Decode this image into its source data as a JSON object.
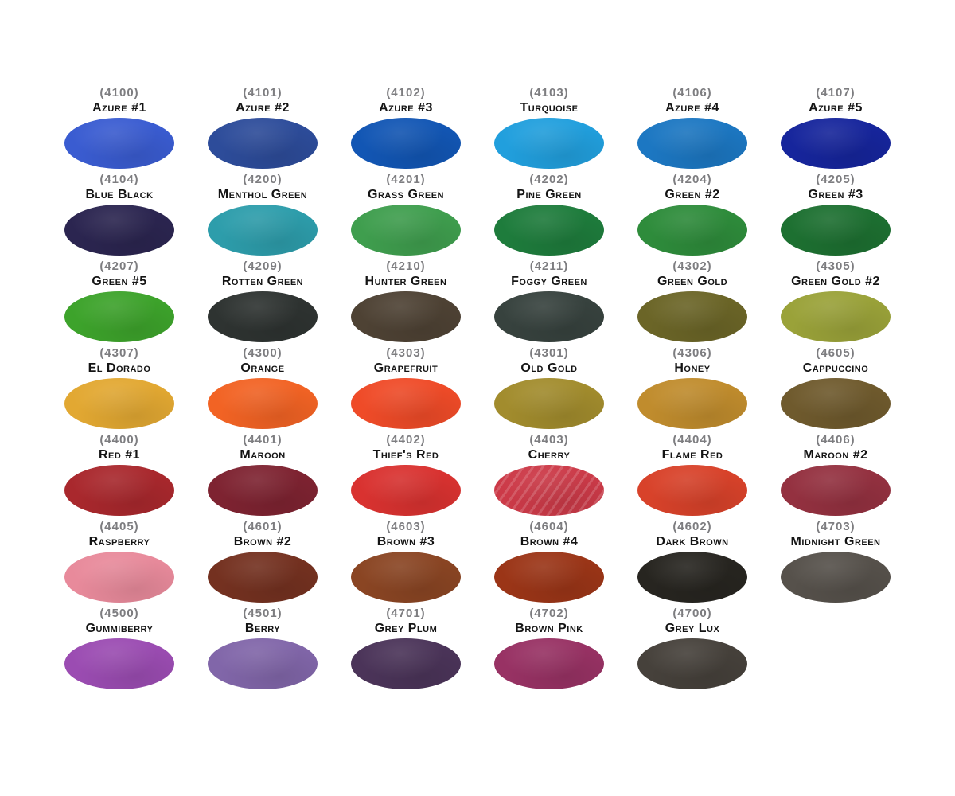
{
  "page": {
    "background": "#ffffff",
    "code_color": "#7d7d80",
    "name_color": "#141414",
    "columns": 6
  },
  "swatches": [
    {
      "code": "(4100)",
      "name": "Azure #1",
      "color": "#3a5cd1"
    },
    {
      "code": "(4101)",
      "name": "Azure #2",
      "color": "#2d4c9a"
    },
    {
      "code": "(4102)",
      "name": "Azure #3",
      "color": "#1256b4"
    },
    {
      "code": "(4103)",
      "name": "Turquoise",
      "color": "#219fdd"
    },
    {
      "code": "(4106)",
      "name": "Azure #4",
      "color": "#1c77c2"
    },
    {
      "code": "(4107)",
      "name": "Azure #5",
      "color": "#16259c"
    },
    {
      "code": "(4104)",
      "name": "Blue Black",
      "color": "#2b2550"
    },
    {
      "code": "(4200)",
      "name": "Menthol Green",
      "color": "#2d9dab"
    },
    {
      "code": "(4201)",
      "name": "Grass Green",
      "color": "#3f9e4e"
    },
    {
      "code": "(4202)",
      "name": "Pine Green",
      "color": "#1e7c3c"
    },
    {
      "code": "(4204)",
      "name": "Green #2",
      "color": "#2e8c3b"
    },
    {
      "code": "(4205)",
      "name": "Green #3",
      "color": "#1d7031"
    },
    {
      "code": "(4207)",
      "name": "Green #5",
      "color": "#3da32b"
    },
    {
      "code": "(4209)",
      "name": "Rotten Green",
      "color": "#2e3331"
    },
    {
      "code": "(4210)",
      "name": "Hunter Green",
      "color": "#4e4234"
    },
    {
      "code": "(4211)",
      "name": "Foggy Green",
      "color": "#37423e"
    },
    {
      "code": "(4302)",
      "name": "Green Gold",
      "color": "#6b6527"
    },
    {
      "code": "(4305)",
      "name": "Green Gold #2",
      "color": "#9aa239"
    },
    {
      "code": "(4307)",
      "name": "El Dorado",
      "color": "#e2a832"
    },
    {
      "code": "(4300)",
      "name": "Orange",
      "color": "#f26324"
    },
    {
      "code": "(4303)",
      "name": "Grapefruit",
      "color": "#ef4b28"
    },
    {
      "code": "(4301)",
      "name": "Old Gold",
      "color": "#a28c2d"
    },
    {
      "code": "(4306)",
      "name": "Honey",
      "color": "#c08c2d"
    },
    {
      "code": "(4605)",
      "name": "Cappuccino",
      "color": "#6f5a2d"
    },
    {
      "code": "(4400)",
      "name": "Red #1",
      "color": "#a9282d"
    },
    {
      "code": "(4401)",
      "name": "Maroon",
      "color": "#7e2331"
    },
    {
      "code": "(4402)",
      "name": "Thief's Red",
      "color": "#d93230"
    },
    {
      "code": "(4403)",
      "name": "Cherry",
      "color": "#cc3a48",
      "streaks": true
    },
    {
      "code": "(4404)",
      "name": "Flame Red",
      "color": "#d8422a"
    },
    {
      "code": "(4406)",
      "name": "Maroon #2",
      "color": "#943140"
    },
    {
      "code": "(4405)",
      "name": "Raspberry",
      "color": "#e88a9b"
    },
    {
      "code": "(4601)",
      "name": "Brown #2",
      "color": "#743120"
    },
    {
      "code": "(4603)",
      "name": "Brown #3",
      "color": "#8a4523"
    },
    {
      "code": "(4604)",
      "name": "Brown #4",
      "color": "#9b3517"
    },
    {
      "code": "(4602)",
      "name": "Dark Brown",
      "color": "#272520"
    },
    {
      "code": "(4703)",
      "name": "Midnight Green",
      "color": "#56514b"
    },
    {
      "code": "(4500)",
      "name": "Gummiberry",
      "color": "#9b4cb2"
    },
    {
      "code": "(4501)",
      "name": "Berry",
      "color": "#8166a9"
    },
    {
      "code": "(4701)",
      "name": "Grey Plum",
      "color": "#4b3459"
    },
    {
      "code": "(4702)",
      "name": "Brown Pink",
      "color": "#983264"
    },
    {
      "code": "(4700)",
      "name": "Grey Lux",
      "color": "#46413b"
    }
  ]
}
